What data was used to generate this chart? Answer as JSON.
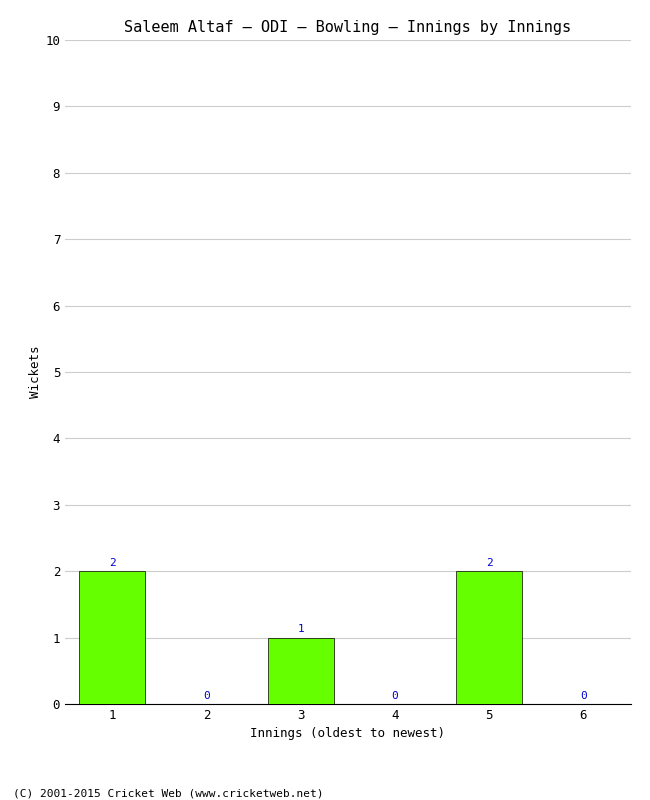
{
  "title": "Saleem Altaf – ODI – Bowling – Innings by Innings",
  "xlabel": "Innings (oldest to newest)",
  "ylabel": "Wickets",
  "categories": [
    "1",
    "2",
    "3",
    "4",
    "5",
    "6"
  ],
  "values": [
    2,
    0,
    1,
    0,
    2,
    0
  ],
  "bar_color": "#66ff00",
  "bar_edge_color": "#000000",
  "ylim": [
    0,
    10
  ],
  "yticks": [
    0,
    1,
    2,
    3,
    4,
    5,
    6,
    7,
    8,
    9,
    10
  ],
  "annotation_color": "#0000cc",
  "background_color": "#ffffff",
  "grid_color": "#cccccc",
  "footer": "(C) 2001-2015 Cricket Web (www.cricketweb.net)",
  "title_fontsize": 11,
  "axis_label_fontsize": 9,
  "tick_fontsize": 9,
  "annotation_fontsize": 8,
  "footer_fontsize": 8
}
